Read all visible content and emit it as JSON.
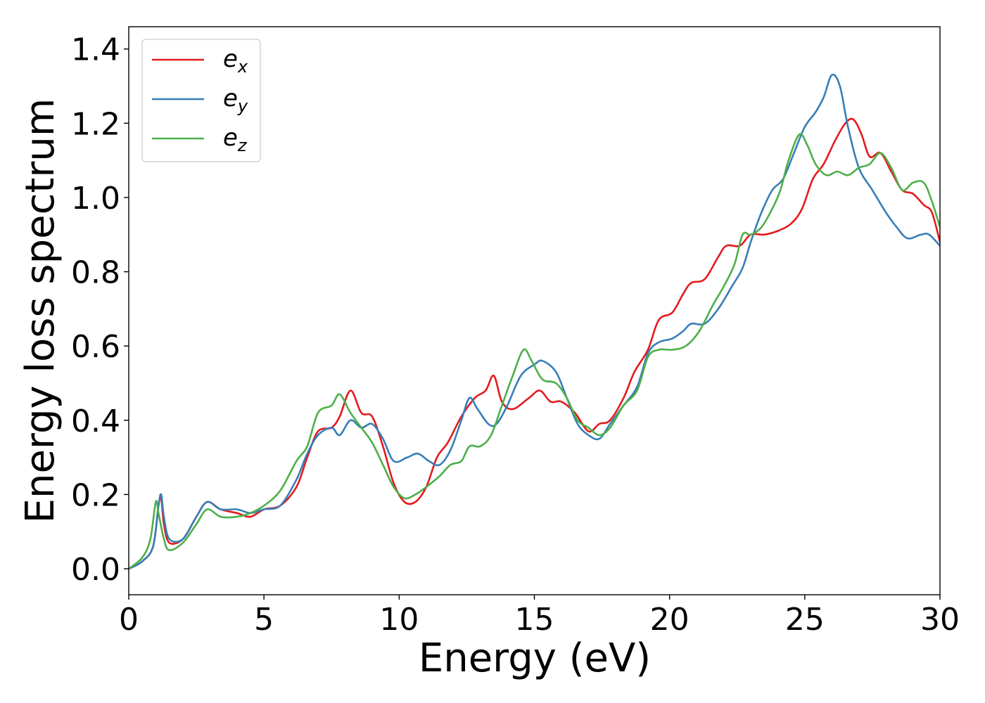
{
  "chart_data": {
    "type": "line",
    "title": "",
    "xlabel": "Energy (eV)",
    "ylabel": "Energy loss spectrum",
    "xlim": [
      0,
      30
    ],
    "ylim": [
      -0.07,
      1.46
    ],
    "x_ticks": [
      0,
      5,
      10,
      15,
      20,
      25,
      30
    ],
    "y_ticks": [
      0.0,
      0.2,
      0.4,
      0.6,
      0.8,
      1.0,
      1.2,
      1.4
    ],
    "x_tick_labels": [
      "0",
      "5",
      "10",
      "15",
      "20",
      "25",
      "30"
    ],
    "y_tick_labels": [
      "0.0",
      "0.2",
      "0.4",
      "0.6",
      "0.8",
      "1.0",
      "1.2",
      "1.4"
    ],
    "grid": false,
    "legend_position": "top-left",
    "series": [
      {
        "name": "e",
        "subscript": "x",
        "color": "#e41a1c",
        "points": [
          [
            0,
            0
          ],
          [
            0.5,
            0.02
          ],
          [
            0.9,
            0.06
          ],
          [
            1.1,
            0.17
          ],
          [
            1.2,
            0.19
          ],
          [
            1.3,
            0.12
          ],
          [
            1.5,
            0.07
          ],
          [
            2.0,
            0.08
          ],
          [
            2.5,
            0.14
          ],
          [
            2.9,
            0.18
          ],
          [
            3.4,
            0.16
          ],
          [
            4.0,
            0.15
          ],
          [
            4.5,
            0.14
          ],
          [
            5.0,
            0.16
          ],
          [
            5.6,
            0.17
          ],
          [
            6.2,
            0.22
          ],
          [
            6.6,
            0.3
          ],
          [
            7.0,
            0.37
          ],
          [
            7.5,
            0.38
          ],
          [
            7.8,
            0.41
          ],
          [
            8.2,
            0.48
          ],
          [
            8.6,
            0.42
          ],
          [
            9.0,
            0.41
          ],
          [
            9.4,
            0.33
          ],
          [
            9.8,
            0.23
          ],
          [
            10.2,
            0.18
          ],
          [
            10.6,
            0.18
          ],
          [
            11.0,
            0.22
          ],
          [
            11.4,
            0.3
          ],
          [
            11.8,
            0.34
          ],
          [
            12.3,
            0.41
          ],
          [
            12.8,
            0.46
          ],
          [
            13.2,
            0.48
          ],
          [
            13.5,
            0.52
          ],
          [
            13.8,
            0.45
          ],
          [
            14.2,
            0.43
          ],
          [
            14.8,
            0.46
          ],
          [
            15.2,
            0.48
          ],
          [
            15.6,
            0.45
          ],
          [
            16.0,
            0.45
          ],
          [
            16.5,
            0.42
          ],
          [
            17.0,
            0.37
          ],
          [
            17.4,
            0.39
          ],
          [
            17.8,
            0.4
          ],
          [
            18.3,
            0.46
          ],
          [
            18.7,
            0.53
          ],
          [
            19.2,
            0.59
          ],
          [
            19.6,
            0.67
          ],
          [
            20.1,
            0.69
          ],
          [
            20.5,
            0.74
          ],
          [
            20.8,
            0.77
          ],
          [
            21.3,
            0.78
          ],
          [
            21.8,
            0.84
          ],
          [
            22.1,
            0.87
          ],
          [
            22.6,
            0.87
          ],
          [
            23.0,
            0.9
          ],
          [
            23.5,
            0.9
          ],
          [
            24.0,
            0.91
          ],
          [
            24.5,
            0.93
          ],
          [
            24.9,
            0.97
          ],
          [
            25.3,
            1.05
          ],
          [
            25.7,
            1.09
          ],
          [
            26.1,
            1.15
          ],
          [
            26.5,
            1.2
          ],
          [
            26.8,
            1.21
          ],
          [
            27.1,
            1.17
          ],
          [
            27.4,
            1.11
          ],
          [
            27.8,
            1.12
          ],
          [
            28.2,
            1.07
          ],
          [
            28.6,
            1.02
          ],
          [
            29.0,
            1.01
          ],
          [
            29.4,
            0.98
          ],
          [
            29.7,
            0.96
          ],
          [
            30.0,
            0.88
          ]
        ]
      },
      {
        "name": "e",
        "subscript": "y",
        "color": "#377eb8",
        "points": [
          [
            0,
            0
          ],
          [
            0.5,
            0.02
          ],
          [
            0.9,
            0.06
          ],
          [
            1.1,
            0.17
          ],
          [
            1.2,
            0.2
          ],
          [
            1.3,
            0.14
          ],
          [
            1.5,
            0.08
          ],
          [
            2.0,
            0.08
          ],
          [
            2.5,
            0.14
          ],
          [
            2.9,
            0.18
          ],
          [
            3.4,
            0.16
          ],
          [
            4.0,
            0.16
          ],
          [
            4.5,
            0.15
          ],
          [
            5.0,
            0.16
          ],
          [
            5.6,
            0.17
          ],
          [
            6.2,
            0.24
          ],
          [
            6.6,
            0.31
          ],
          [
            7.0,
            0.36
          ],
          [
            7.5,
            0.38
          ],
          [
            7.8,
            0.36
          ],
          [
            8.2,
            0.4
          ],
          [
            8.6,
            0.38
          ],
          [
            9.0,
            0.39
          ],
          [
            9.4,
            0.35
          ],
          [
            9.8,
            0.29
          ],
          [
            10.3,
            0.3
          ],
          [
            10.7,
            0.31
          ],
          [
            11.1,
            0.29
          ],
          [
            11.5,
            0.28
          ],
          [
            11.9,
            0.32
          ],
          [
            12.3,
            0.4
          ],
          [
            12.6,
            0.46
          ],
          [
            12.9,
            0.43
          ],
          [
            13.3,
            0.39
          ],
          [
            13.6,
            0.39
          ],
          [
            14.0,
            0.44
          ],
          [
            14.5,
            0.52
          ],
          [
            15.0,
            0.55
          ],
          [
            15.3,
            0.56
          ],
          [
            15.8,
            0.53
          ],
          [
            16.2,
            0.46
          ],
          [
            16.6,
            0.39
          ],
          [
            17.0,
            0.36
          ],
          [
            17.4,
            0.35
          ],
          [
            17.8,
            0.39
          ],
          [
            18.3,
            0.44
          ],
          [
            18.8,
            0.49
          ],
          [
            19.2,
            0.58
          ],
          [
            19.6,
            0.61
          ],
          [
            20.1,
            0.62
          ],
          [
            20.5,
            0.64
          ],
          [
            20.8,
            0.66
          ],
          [
            21.3,
            0.66
          ],
          [
            21.8,
            0.7
          ],
          [
            22.3,
            0.76
          ],
          [
            22.7,
            0.81
          ],
          [
            23.0,
            0.88
          ],
          [
            23.4,
            0.96
          ],
          [
            23.8,
            1.02
          ],
          [
            24.2,
            1.05
          ],
          [
            24.6,
            1.12
          ],
          [
            25.0,
            1.19
          ],
          [
            25.4,
            1.23
          ],
          [
            25.7,
            1.27
          ],
          [
            26.0,
            1.33
          ],
          [
            26.3,
            1.3
          ],
          [
            26.6,
            1.19
          ],
          [
            27.0,
            1.08
          ],
          [
            27.5,
            1.02
          ],
          [
            28.0,
            0.96
          ],
          [
            28.4,
            0.92
          ],
          [
            28.8,
            0.89
          ],
          [
            29.3,
            0.9
          ],
          [
            29.6,
            0.9
          ],
          [
            30.0,
            0.87
          ]
        ]
      },
      {
        "name": "e",
        "subscript": "z",
        "color": "#4daf4a",
        "points": [
          [
            0,
            0
          ],
          [
            0.5,
            0.03
          ],
          [
            0.8,
            0.08
          ],
          [
            1.0,
            0.18
          ],
          [
            1.1,
            0.15
          ],
          [
            1.3,
            0.08
          ],
          [
            1.5,
            0.05
          ],
          [
            2.0,
            0.07
          ],
          [
            2.5,
            0.12
          ],
          [
            2.9,
            0.16
          ],
          [
            3.4,
            0.14
          ],
          [
            4.0,
            0.14
          ],
          [
            4.5,
            0.15
          ],
          [
            5.0,
            0.17
          ],
          [
            5.6,
            0.21
          ],
          [
            6.2,
            0.29
          ],
          [
            6.6,
            0.33
          ],
          [
            7.0,
            0.42
          ],
          [
            7.5,
            0.44
          ],
          [
            7.8,
            0.47
          ],
          [
            8.2,
            0.42
          ],
          [
            8.6,
            0.38
          ],
          [
            9.0,
            0.34
          ],
          [
            9.4,
            0.28
          ],
          [
            9.8,
            0.22
          ],
          [
            10.2,
            0.19
          ],
          [
            10.6,
            0.2
          ],
          [
            11.0,
            0.22
          ],
          [
            11.5,
            0.25
          ],
          [
            11.9,
            0.28
          ],
          [
            12.3,
            0.29
          ],
          [
            12.6,
            0.33
          ],
          [
            13.0,
            0.33
          ],
          [
            13.4,
            0.36
          ],
          [
            13.8,
            0.44
          ],
          [
            14.2,
            0.52
          ],
          [
            14.6,
            0.59
          ],
          [
            14.9,
            0.56
          ],
          [
            15.3,
            0.51
          ],
          [
            15.8,
            0.5
          ],
          [
            16.2,
            0.46
          ],
          [
            16.6,
            0.4
          ],
          [
            17.0,
            0.38
          ],
          [
            17.4,
            0.36
          ],
          [
            17.8,
            0.38
          ],
          [
            18.3,
            0.44
          ],
          [
            18.8,
            0.48
          ],
          [
            19.2,
            0.57
          ],
          [
            19.6,
            0.59
          ],
          [
            20.1,
            0.59
          ],
          [
            20.6,
            0.6
          ],
          [
            21.1,
            0.64
          ],
          [
            21.6,
            0.71
          ],
          [
            22.0,
            0.76
          ],
          [
            22.4,
            0.82
          ],
          [
            22.7,
            0.9
          ],
          [
            23.0,
            0.9
          ],
          [
            23.4,
            0.92
          ],
          [
            23.8,
            0.97
          ],
          [
            24.1,
            1.02
          ],
          [
            24.4,
            1.1
          ],
          [
            24.8,
            1.17
          ],
          [
            25.1,
            1.14
          ],
          [
            25.4,
            1.09
          ],
          [
            25.8,
            1.06
          ],
          [
            26.2,
            1.07
          ],
          [
            26.6,
            1.06
          ],
          [
            27.0,
            1.08
          ],
          [
            27.4,
            1.09
          ],
          [
            27.8,
            1.12
          ],
          [
            28.2,
            1.08
          ],
          [
            28.6,
            1.02
          ],
          [
            29.0,
            1.04
          ],
          [
            29.4,
            1.04
          ],
          [
            29.7,
            0.99
          ],
          [
            30.0,
            0.92
          ]
        ]
      }
    ]
  }
}
